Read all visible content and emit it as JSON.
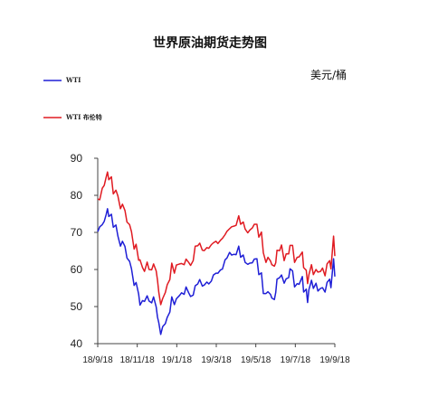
{
  "chart_data": {
    "type": "line",
    "title": "世界原油期货走势图",
    "unit_label": "美元/桶",
    "ylim": [
      40,
      90
    ],
    "yticks": [
      "90",
      "80",
      "70",
      "60",
      "50",
      "40"
    ],
    "xticks": [
      "18/9/18",
      "18/11/18",
      "19/1/18",
      "19/3/18",
      "19/5/18",
      "19/7/18",
      "19/9/18"
    ],
    "legend_position": "top-left",
    "colors": {
      "wti": "#1f1fd6",
      "brent": "#e01b22"
    },
    "series": [
      {
        "name": "WTI",
        "color": "#1f1fd6",
        "points": [
          [
            "2018-09-18",
            70.2
          ],
          [
            "2018-09-21",
            71.5
          ],
          [
            "2018-09-25",
            72.1
          ],
          [
            "2018-09-28",
            73.0
          ],
          [
            "2018-10-01",
            74.8
          ],
          [
            "2018-10-03",
            76.4
          ],
          [
            "2018-10-05",
            74.3
          ],
          [
            "2018-10-09",
            74.9
          ],
          [
            "2018-10-12",
            71.4
          ],
          [
            "2018-10-16",
            72.0
          ],
          [
            "2018-10-19",
            69.0
          ],
          [
            "2018-10-23",
            66.3
          ],
          [
            "2018-10-26",
            67.6
          ],
          [
            "2018-10-30",
            66.2
          ],
          [
            "2018-11-02",
            63.1
          ],
          [
            "2018-11-06",
            62.2
          ],
          [
            "2018-11-09",
            60.2
          ],
          [
            "2018-11-13",
            55.7
          ],
          [
            "2018-11-16",
            56.5
          ],
          [
            "2018-11-20",
            53.4
          ],
          [
            "2018-11-22",
            50.4
          ],
          [
            "2018-11-26",
            51.6
          ],
          [
            "2018-11-29",
            51.4
          ],
          [
            "2018-12-03",
            52.9
          ],
          [
            "2018-12-06",
            51.5
          ],
          [
            "2018-12-10",
            51.0
          ],
          [
            "2018-12-13",
            52.6
          ],
          [
            "2018-12-17",
            49.9
          ],
          [
            "2018-12-19",
            47.2
          ],
          [
            "2018-12-21",
            45.6
          ],
          [
            "2018-12-24",
            42.5
          ],
          [
            "2018-12-27",
            44.6
          ],
          [
            "2018-12-31",
            45.4
          ],
          [
            "2019-01-03",
            47.1
          ],
          [
            "2019-01-07",
            48.5
          ],
          [
            "2019-01-10",
            52.6
          ],
          [
            "2019-01-14",
            50.5
          ],
          [
            "2019-01-17",
            52.1
          ],
          [
            "2019-01-22",
            53.0
          ],
          [
            "2019-01-25",
            53.7
          ],
          [
            "2019-01-29",
            53.3
          ],
          [
            "2019-02-01",
            55.3
          ],
          [
            "2019-02-05",
            53.7
          ],
          [
            "2019-02-08",
            52.7
          ],
          [
            "2019-02-12",
            53.1
          ],
          [
            "2019-02-15",
            55.6
          ],
          [
            "2019-02-19",
            56.1
          ],
          [
            "2019-02-22",
            57.3
          ],
          [
            "2019-02-26",
            55.5
          ],
          [
            "2019-03-01",
            55.8
          ],
          [
            "2019-03-05",
            56.6
          ],
          [
            "2019-03-08",
            56.1
          ],
          [
            "2019-03-12",
            56.9
          ],
          [
            "2019-03-15",
            58.5
          ],
          [
            "2019-03-19",
            59.0
          ],
          [
            "2019-03-22",
            59.0
          ],
          [
            "2019-03-26",
            59.9
          ],
          [
            "2019-03-29",
            60.1
          ],
          [
            "2019-04-02",
            62.6
          ],
          [
            "2019-04-05",
            63.1
          ],
          [
            "2019-04-09",
            64.6
          ],
          [
            "2019-04-12",
            63.9
          ],
          [
            "2019-04-16",
            64.1
          ],
          [
            "2019-04-19",
            64.0
          ],
          [
            "2019-04-23",
            66.3
          ],
          [
            "2019-04-26",
            63.3
          ],
          [
            "2019-04-30",
            63.9
          ],
          [
            "2019-05-03",
            61.9
          ],
          [
            "2019-05-07",
            61.4
          ],
          [
            "2019-05-10",
            61.7
          ],
          [
            "2019-05-14",
            61.8
          ],
          [
            "2019-05-17",
            62.8
          ],
          [
            "2019-05-21",
            62.9
          ],
          [
            "2019-05-24",
            58.6
          ],
          [
            "2019-05-28",
            59.1
          ],
          [
            "2019-05-31",
            53.5
          ],
          [
            "2019-06-04",
            53.5
          ],
          [
            "2019-06-07",
            54.0
          ],
          [
            "2019-06-11",
            53.3
          ],
          [
            "2019-06-13",
            52.3
          ],
          [
            "2019-06-17",
            51.9
          ],
          [
            "2019-06-19",
            53.8
          ],
          [
            "2019-06-21",
            57.4
          ],
          [
            "2019-06-25",
            57.8
          ],
          [
            "2019-06-28",
            58.5
          ],
          [
            "2019-07-02",
            56.3
          ],
          [
            "2019-07-05",
            57.5
          ],
          [
            "2019-07-09",
            57.8
          ],
          [
            "2019-07-11",
            60.2
          ],
          [
            "2019-07-15",
            59.6
          ],
          [
            "2019-07-18",
            55.3
          ],
          [
            "2019-07-22",
            56.2
          ],
          [
            "2019-07-25",
            56.0
          ],
          [
            "2019-07-30",
            58.1
          ],
          [
            "2019-08-01",
            53.9
          ],
          [
            "2019-08-05",
            54.7
          ],
          [
            "2019-08-07",
            51.1
          ],
          [
            "2019-08-09",
            54.5
          ],
          [
            "2019-08-13",
            57.1
          ],
          [
            "2019-08-16",
            54.9
          ],
          [
            "2019-08-20",
            56.3
          ],
          [
            "2019-08-23",
            54.2
          ],
          [
            "2019-08-27",
            54.9
          ],
          [
            "2019-08-30",
            55.1
          ],
          [
            "2019-09-03",
            53.9
          ],
          [
            "2019-09-06",
            56.5
          ],
          [
            "2019-09-10",
            57.4
          ],
          [
            "2019-09-12",
            55.1
          ],
          [
            "2019-09-16",
            62.9
          ],
          [
            "2019-09-18",
            58.1
          ]
        ]
      },
      {
        "name": "WTI 布伦特",
        "color": "#e01b22",
        "points": [
          [
            "2018-09-18",
            79.0
          ],
          [
            "2018-09-21",
            78.8
          ],
          [
            "2018-09-25",
            81.9
          ],
          [
            "2018-09-28",
            82.7
          ],
          [
            "2018-10-01",
            84.9
          ],
          [
            "2018-10-03",
            86.3
          ],
          [
            "2018-10-05",
            84.2
          ],
          [
            "2018-10-09",
            85.0
          ],
          [
            "2018-10-12",
            80.4
          ],
          [
            "2018-10-16",
            81.4
          ],
          [
            "2018-10-19",
            79.8
          ],
          [
            "2018-10-23",
            76.4
          ],
          [
            "2018-10-26",
            77.6
          ],
          [
            "2018-10-30",
            75.9
          ],
          [
            "2018-11-02",
            72.8
          ],
          [
            "2018-11-06",
            72.1
          ],
          [
            "2018-11-09",
            70.2
          ],
          [
            "2018-11-13",
            65.5
          ],
          [
            "2018-11-16",
            66.8
          ],
          [
            "2018-11-20",
            62.5
          ],
          [
            "2018-11-22",
            62.6
          ],
          [
            "2018-11-26",
            60.5
          ],
          [
            "2018-11-29",
            59.5
          ],
          [
            "2018-12-03",
            62.0
          ],
          [
            "2018-12-06",
            60.0
          ],
          [
            "2018-12-10",
            59.9
          ],
          [
            "2018-12-13",
            61.5
          ],
          [
            "2018-12-17",
            59.6
          ],
          [
            "2018-12-19",
            57.2
          ],
          [
            "2018-12-21",
            53.8
          ],
          [
            "2018-12-24",
            50.5
          ],
          [
            "2018-12-27",
            52.2
          ],
          [
            "2018-12-31",
            53.8
          ],
          [
            "2019-01-03",
            55.9
          ],
          [
            "2019-01-07",
            57.3
          ],
          [
            "2019-01-10",
            61.7
          ],
          [
            "2019-01-14",
            59.0
          ],
          [
            "2019-01-17",
            61.2
          ],
          [
            "2019-01-22",
            61.5
          ],
          [
            "2019-01-25",
            61.6
          ],
          [
            "2019-01-29",
            61.3
          ],
          [
            "2019-02-01",
            62.8
          ],
          [
            "2019-02-05",
            61.9
          ],
          [
            "2019-02-08",
            61.1
          ],
          [
            "2019-02-12",
            62.4
          ],
          [
            "2019-02-15",
            66.3
          ],
          [
            "2019-02-19",
            66.4
          ],
          [
            "2019-02-22",
            67.1
          ],
          [
            "2019-02-26",
            65.2
          ],
          [
            "2019-03-01",
            65.1
          ],
          [
            "2019-03-05",
            65.9
          ],
          [
            "2019-03-08",
            65.7
          ],
          [
            "2019-03-12",
            66.7
          ],
          [
            "2019-03-15",
            67.2
          ],
          [
            "2019-03-19",
            67.6
          ],
          [
            "2019-03-22",
            67.0
          ],
          [
            "2019-03-26",
            67.9
          ],
          [
            "2019-03-29",
            68.4
          ],
          [
            "2019-04-02",
            69.4
          ],
          [
            "2019-04-05",
            70.3
          ],
          [
            "2019-04-09",
            71.0
          ],
          [
            "2019-04-12",
            71.5
          ],
          [
            "2019-04-16",
            71.7
          ],
          [
            "2019-04-19",
            71.9
          ],
          [
            "2019-04-23",
            74.5
          ],
          [
            "2019-04-26",
            72.2
          ],
          [
            "2019-04-30",
            72.8
          ],
          [
            "2019-05-03",
            70.9
          ],
          [
            "2019-05-07",
            69.9
          ],
          [
            "2019-05-10",
            70.6
          ],
          [
            "2019-05-14",
            71.2
          ],
          [
            "2019-05-17",
            72.2
          ],
          [
            "2019-05-21",
            72.2
          ],
          [
            "2019-05-24",
            68.7
          ],
          [
            "2019-05-28",
            70.1
          ],
          [
            "2019-05-31",
            64.5
          ],
          [
            "2019-06-04",
            61.9
          ],
          [
            "2019-06-07",
            63.3
          ],
          [
            "2019-06-11",
            62.3
          ],
          [
            "2019-06-13",
            61.3
          ],
          [
            "2019-06-17",
            60.9
          ],
          [
            "2019-06-19",
            61.8
          ],
          [
            "2019-06-21",
            65.2
          ],
          [
            "2019-06-25",
            65.1
          ],
          [
            "2019-06-28",
            66.6
          ],
          [
            "2019-07-02",
            62.4
          ],
          [
            "2019-07-05",
            64.2
          ],
          [
            "2019-07-09",
            64.2
          ],
          [
            "2019-07-11",
            66.5
          ],
          [
            "2019-07-15",
            66.5
          ],
          [
            "2019-07-18",
            61.9
          ],
          [
            "2019-07-22",
            63.3
          ],
          [
            "2019-07-25",
            63.4
          ],
          [
            "2019-07-30",
            64.7
          ],
          [
            "2019-08-01",
            60.5
          ],
          [
            "2019-08-05",
            59.8
          ],
          [
            "2019-08-07",
            56.2
          ],
          [
            "2019-08-09",
            58.5
          ],
          [
            "2019-08-13",
            61.3
          ],
          [
            "2019-08-16",
            58.6
          ],
          [
            "2019-08-20",
            60.0
          ],
          [
            "2019-08-23",
            59.3
          ],
          [
            "2019-08-27",
            59.5
          ],
          [
            "2019-08-30",
            60.4
          ],
          [
            "2019-09-03",
            58.3
          ],
          [
            "2019-09-06",
            61.5
          ],
          [
            "2019-09-10",
            62.4
          ],
          [
            "2019-09-12",
            60.2
          ],
          [
            "2019-09-16",
            69.0
          ],
          [
            "2019-09-18",
            63.6
          ]
        ]
      }
    ]
  }
}
